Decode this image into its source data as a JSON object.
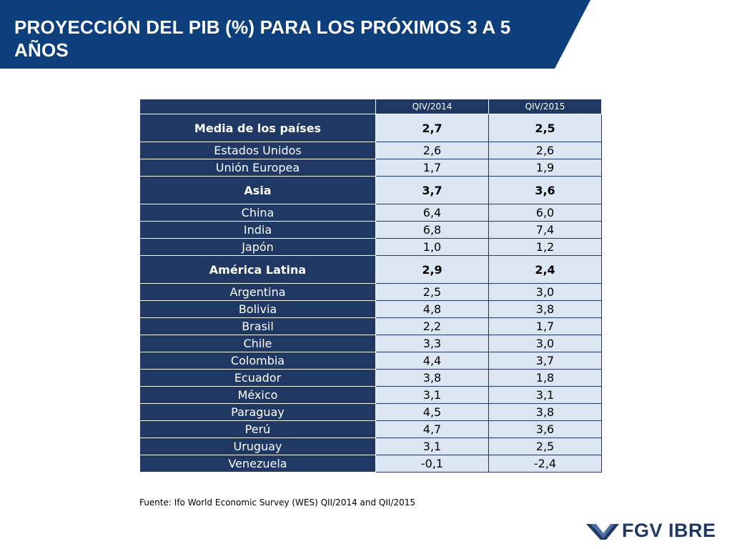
{
  "header": {
    "title": "PROYECCIÓN DEL PIB (%) PARA LOS PRÓXIMOS 3 A 5 AÑOS",
    "color": "#0e3f7d"
  },
  "table": {
    "columns": [
      "",
      "QIV/2014",
      "QIV/2015"
    ],
    "rows": [
      {
        "label": "Media de los países",
        "q2014": "2,7",
        "q2015": "2,5",
        "group": true
      },
      {
        "label": "Estados Unidos",
        "q2014": "2,6",
        "q2015": "2,6",
        "group": false
      },
      {
        "label": "Unión Europea",
        "q2014": "1,7",
        "q2015": "1,9",
        "group": false
      },
      {
        "label": "Asia",
        "q2014": "3,7",
        "q2015": "3,6",
        "group": true
      },
      {
        "label": "China",
        "q2014": "6,4",
        "q2015": "6,0",
        "group": false
      },
      {
        "label": "India",
        "q2014": "6,8",
        "q2015": "7,4",
        "group": false
      },
      {
        "label": "Japón",
        "q2014": "1,0",
        "q2015": "1,2",
        "group": false
      },
      {
        "label": "América Latina",
        "q2014": "2,9",
        "q2015": "2,4",
        "group": true
      },
      {
        "label": "Argentina",
        "q2014": "2,5",
        "q2015": "3,0",
        "group": false
      },
      {
        "label": "Bolivia",
        "q2014": "4,8",
        "q2015": "3,8",
        "group": false
      },
      {
        "label": "Brasil",
        "q2014": "2,2",
        "q2015": "1,7",
        "group": false
      },
      {
        "label": "Chile",
        "q2014": "3,3",
        "q2015": "3,0",
        "group": false
      },
      {
        "label": "Colombia",
        "q2014": "4,4",
        "q2015": "3,7",
        "group": false
      },
      {
        "label": "Ecuador",
        "q2014": "3,8",
        "q2015": "1,8",
        "group": false
      },
      {
        "label": "México",
        "q2014": "3,1",
        "q2015": "3,1",
        "group": false
      },
      {
        "label": "Paraguay",
        "q2014": "4,5",
        "q2015": "3,8",
        "group": false
      },
      {
        "label": "Perú",
        "q2014": "4,7",
        "q2015": "3,6",
        "group": false
      },
      {
        "label": "Uruguay",
        "q2014": "3,1",
        "q2015": "2,5",
        "group": false
      },
      {
        "label": "Venezuela",
        "q2014": "-0,1",
        "q2015": "-2,4",
        "group": false
      }
    ]
  },
  "source": "Fuente: Ifo World Economic Survey (WES) QII/2014 and QII/2015",
  "logo": {
    "text": "FGV IBRE",
    "icon": "fgv-chevron-logo-icon"
  }
}
